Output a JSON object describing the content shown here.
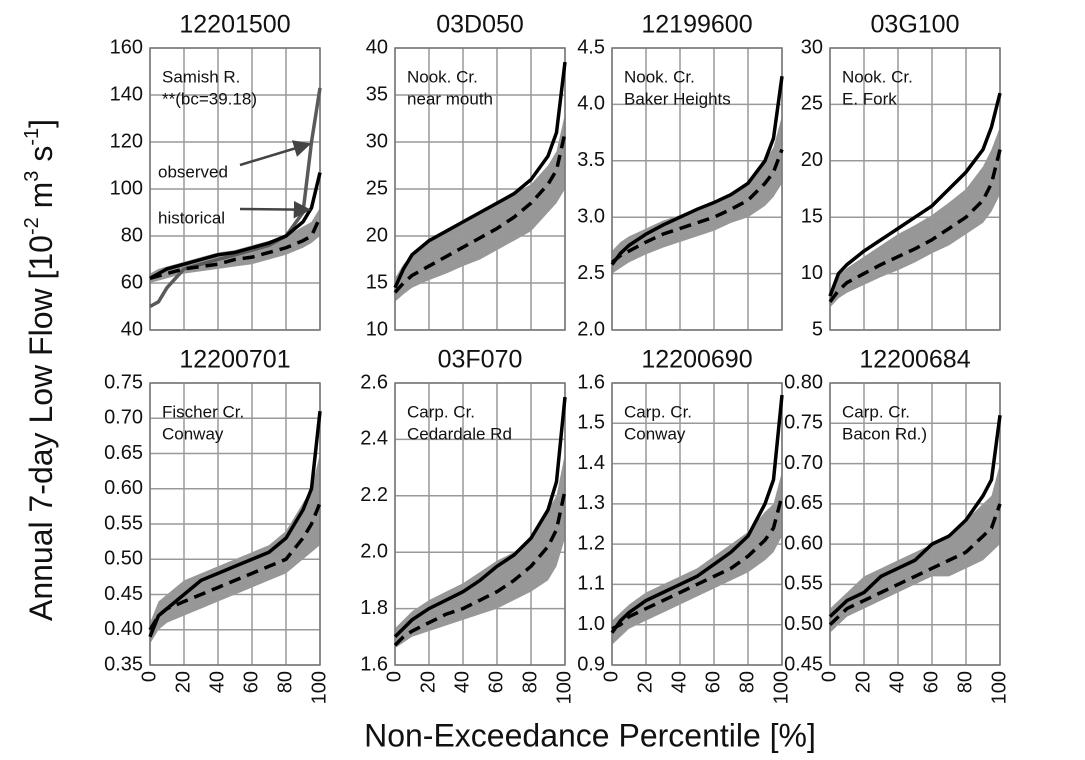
{
  "figure": {
    "xlabel": "Non-Exceedance Percentile [%]",
    "ylabel": [
      "Annual 7-day Low Flow [10",
      "-2",
      " m",
      "3",
      " s",
      "-1",
      "]"
    ]
  },
  "chart_data": [
    {
      "type": "line",
      "title": "12201500",
      "annotation": [
        "Samish R.",
        "**(bc=39.18)"
      ],
      "x": [
        0,
        5,
        10,
        20,
        30,
        40,
        50,
        60,
        70,
        80,
        90,
        95,
        100
      ],
      "xlim": [
        0,
        100
      ],
      "xticks": [
        0,
        20,
        40,
        60,
        80,
        100
      ],
      "ylim": [
        40,
        160
      ],
      "yticks": [
        40,
        60,
        80,
        100,
        120,
        140,
        160
      ],
      "grid": true,
      "band": {
        "color": "#8c8c8c",
        "lower": [
          60,
          61,
          62,
          64,
          65,
          66,
          67,
          68,
          70,
          72,
          75,
          77,
          80
        ],
        "upper": [
          64,
          66,
          67,
          69,
          71,
          73,
          74,
          76,
          78,
          80,
          84,
          86,
          92
        ]
      },
      "series": [
        {
          "name": "observed",
          "color": "#5a5a5a",
          "dash": false,
          "values": [
            50,
            52,
            58,
            66,
            68,
            70,
            72,
            74,
            76,
            80,
            90,
            120,
            143
          ]
        },
        {
          "name": "historical",
          "color": "#000000",
          "dash": false,
          "values": [
            62,
            64,
            66,
            68,
            70,
            72,
            73,
            75,
            77,
            80,
            86,
            92,
            107
          ]
        },
        {
          "color": "#000000",
          "dash": true,
          "values": [
            62,
            63,
            64,
            66,
            67,
            68,
            70,
            71,
            73,
            75,
            78,
            80,
            88
          ]
        }
      ]
    },
    {
      "type": "line",
      "title": "03D050",
      "annotation": [
        "Nook. Cr.",
        "near mouth"
      ],
      "x": [
        0,
        5,
        10,
        20,
        30,
        40,
        50,
        60,
        70,
        80,
        90,
        95,
        100
      ],
      "xlim": [
        0,
        100
      ],
      "xticks": [
        0,
        20,
        40,
        60,
        80,
        100
      ],
      "ylim": [
        10,
        40
      ],
      "yticks": [
        10,
        15,
        20,
        25,
        30,
        35,
        40
      ],
      "grid": true,
      "band": {
        "color": "#8c8c8c",
        "lower": [
          13,
          13.8,
          14.5,
          15.3,
          16,
          16.8,
          17.5,
          18.5,
          19.5,
          20.5,
          22.5,
          23.5,
          25
        ],
        "upper": [
          15.5,
          17,
          18,
          19.5,
          20.5,
          21.5,
          22.5,
          23.5,
          24.5,
          25.5,
          27.5,
          29,
          33
        ]
      },
      "series": [
        {
          "color": "#000000",
          "dash": false,
          "values": [
            14.5,
            16.5,
            18,
            19.5,
            20.5,
            21.5,
            22.5,
            23.5,
            24.5,
            26,
            28.5,
            31,
            38.5
          ]
        },
        {
          "color": "#000000",
          "dash": true,
          "values": [
            14,
            15,
            15.8,
            16.8,
            17.8,
            18.8,
            19.8,
            20.8,
            22,
            23.5,
            25.5,
            27,
            31
          ]
        }
      ]
    },
    {
      "type": "line",
      "title": "12199600",
      "annotation": [
        "Nook. Cr.",
        "Baker Heights"
      ],
      "x": [
        0,
        5,
        10,
        20,
        30,
        40,
        50,
        60,
        70,
        80,
        90,
        95,
        100
      ],
      "xlim": [
        0,
        100
      ],
      "xticks": [
        0,
        20,
        40,
        60,
        80,
        100
      ],
      "ylim": [
        2,
        4.5
      ],
      "yticks": [
        {
          "value": 2,
          "label": "2.0"
        },
        2.5,
        {
          "value": 3,
          "label": "3.0"
        },
        3.5,
        {
          "value": 4,
          "label": "4.0"
        },
        4.5
      ],
      "grid": true,
      "band": {
        "color": "#8c8c8c",
        "lower": [
          2.5,
          2.55,
          2.6,
          2.67,
          2.73,
          2.78,
          2.83,
          2.88,
          2.95,
          3.0,
          3.1,
          3.18,
          3.3
        ],
        "upper": [
          2.7,
          2.78,
          2.83,
          2.9,
          2.97,
          3.02,
          3.08,
          3.13,
          3.2,
          3.3,
          3.5,
          3.62,
          3.9
        ]
      },
      "series": [
        {
          "color": "#000000",
          "dash": false,
          "values": [
            2.58,
            2.68,
            2.75,
            2.85,
            2.93,
            3.0,
            3.07,
            3.13,
            3.2,
            3.3,
            3.5,
            3.7,
            4.25
          ]
        },
        {
          "color": "#000000",
          "dash": true,
          "values": [
            2.6,
            2.66,
            2.7,
            2.78,
            2.85,
            2.9,
            2.95,
            3.0,
            3.07,
            3.15,
            3.3,
            3.4,
            3.6
          ]
        }
      ]
    },
    {
      "type": "line",
      "title": "03G100",
      "annotation": [
        "Nook. Cr.",
        "E. Fork"
      ],
      "x": [
        0,
        5,
        10,
        20,
        30,
        40,
        50,
        60,
        70,
        80,
        90,
        95,
        100
      ],
      "xlim": [
        0,
        100
      ],
      "xticks": [
        0,
        20,
        40,
        60,
        80,
        100
      ],
      "ylim": [
        5,
        30
      ],
      "yticks": [
        5,
        10,
        15,
        20,
        25,
        30
      ],
      "grid": true,
      "band": {
        "color": "#8c8c8c",
        "lower": [
          7,
          7.8,
          8.3,
          9,
          9.7,
          10.3,
          11,
          11.8,
          12.5,
          13.5,
          14.5,
          15.5,
          17
        ],
        "upper": [
          8.5,
          9.8,
          10.5,
          11.5,
          12.5,
          13.5,
          14.3,
          15.2,
          16.3,
          17.5,
          19.5,
          21,
          23
        ]
      },
      "series": [
        {
          "color": "#000000",
          "dash": false,
          "values": [
            8,
            10,
            10.8,
            12,
            13,
            14,
            15,
            16,
            17.5,
            19,
            21,
            23,
            26
          ]
        },
        {
          "color": "#000000",
          "dash": true,
          "values": [
            7.5,
            8.5,
            9.2,
            10,
            10.8,
            11.5,
            12.2,
            13,
            14,
            15,
            16.5,
            18,
            21
          ]
        }
      ]
    },
    {
      "type": "line",
      "title": "12200701",
      "annotation": [
        "Fischer Cr.",
        "Conway"
      ],
      "x": [
        0,
        5,
        10,
        20,
        30,
        40,
        50,
        60,
        70,
        80,
        90,
        95,
        100
      ],
      "xlim": [
        0,
        100
      ],
      "xticks": [
        0,
        20,
        40,
        60,
        80,
        100
      ],
      "ylim": [
        0.35,
        0.75
      ],
      "yticks": [
        0.35,
        {
          "value": 0.4,
          "label": "0.40"
        },
        0.45,
        {
          "value": 0.5,
          "label": "0.50"
        },
        0.55,
        {
          "value": 0.6,
          "label": "0.60"
        },
        0.65,
        {
          "value": 0.7,
          "label": "0.70"
        },
        0.75
      ],
      "grid": true,
      "band": {
        "color": "#8c8c8c",
        "lower": [
          0.38,
          0.4,
          0.41,
          0.42,
          0.43,
          0.44,
          0.45,
          0.46,
          0.47,
          0.48,
          0.5,
          0.51,
          0.52
        ],
        "upper": [
          0.41,
          0.44,
          0.45,
          0.47,
          0.48,
          0.49,
          0.5,
          0.51,
          0.52,
          0.54,
          0.58,
          0.6,
          0.65
        ]
      },
      "series": [
        {
          "color": "#000000",
          "dash": false,
          "values": [
            0.39,
            0.42,
            0.43,
            0.45,
            0.47,
            0.48,
            0.49,
            0.5,
            0.51,
            0.53,
            0.57,
            0.6,
            0.71
          ]
        },
        {
          "color": "#000000",
          "dash": true,
          "values": [
            0.4,
            0.42,
            0.43,
            0.44,
            0.45,
            0.46,
            0.47,
            0.48,
            0.49,
            0.5,
            0.53,
            0.55,
            0.58
          ]
        }
      ]
    },
    {
      "type": "line",
      "title": "03F070",
      "annotation": [
        "Carp. Cr.",
        "Cedardale Rd"
      ],
      "x": [
        0,
        5,
        10,
        20,
        30,
        40,
        50,
        60,
        70,
        80,
        90,
        95,
        100
      ],
      "xlim": [
        0,
        100
      ],
      "xticks": [
        0,
        20,
        40,
        60,
        80,
        100
      ],
      "ylim": [
        1.6,
        2.6
      ],
      "yticks": [
        1.6,
        1.8,
        {
          "value": 2,
          "label": "2.0"
        },
        2.2,
        2.4,
        2.6
      ],
      "grid": true,
      "band": {
        "color": "#8c8c8c",
        "lower": [
          1.66,
          1.68,
          1.7,
          1.72,
          1.74,
          1.76,
          1.78,
          1.8,
          1.83,
          1.86,
          1.9,
          1.95,
          2.05
        ],
        "upper": [
          1.73,
          1.76,
          1.79,
          1.83,
          1.86,
          1.89,
          1.93,
          1.97,
          2.0,
          2.05,
          2.15,
          2.2,
          2.35
        ]
      },
      "series": [
        {
          "color": "#000000",
          "dash": false,
          "values": [
            1.7,
            1.73,
            1.76,
            1.8,
            1.83,
            1.86,
            1.9,
            1.95,
            1.99,
            2.05,
            2.15,
            2.25,
            2.55
          ]
        },
        {
          "color": "#000000",
          "dash": true,
          "values": [
            1.67,
            1.7,
            1.72,
            1.75,
            1.78,
            1.8,
            1.83,
            1.86,
            1.9,
            1.95,
            2.02,
            2.08,
            2.22
          ]
        }
      ]
    },
    {
      "type": "line",
      "title": "12200690",
      "annotation": [
        "Carp. Cr.",
        "Conway"
      ],
      "x": [
        0,
        5,
        10,
        20,
        30,
        40,
        50,
        60,
        70,
        80,
        90,
        95,
        100
      ],
      "xlim": [
        0,
        100
      ],
      "xticks": [
        0,
        20,
        40,
        60,
        80,
        100
      ],
      "ylim": [
        0.9,
        1.6
      ],
      "yticks": [
        0.9,
        {
          "value": 1,
          "label": "1.0"
        },
        1.1,
        1.2,
        1.3,
        1.4,
        1.5,
        1.6
      ],
      "grid": true,
      "band": {
        "color": "#8c8c8c",
        "lower": [
          0.95,
          0.97,
          0.99,
          1.01,
          1.03,
          1.05,
          1.07,
          1.09,
          1.11,
          1.13,
          1.16,
          1.18,
          1.22
        ],
        "upper": [
          1.01,
          1.03,
          1.05,
          1.08,
          1.1,
          1.12,
          1.14,
          1.17,
          1.2,
          1.23,
          1.28,
          1.3,
          1.38
        ]
      },
      "series": [
        {
          "color": "#000000",
          "dash": false,
          "values": [
            0.98,
            1.01,
            1.03,
            1.06,
            1.08,
            1.1,
            1.12,
            1.15,
            1.18,
            1.22,
            1.3,
            1.36,
            1.57
          ]
        },
        {
          "color": "#000000",
          "dash": true,
          "values": [
            0.99,
            1.0,
            1.02,
            1.04,
            1.06,
            1.08,
            1.1,
            1.12,
            1.14,
            1.17,
            1.21,
            1.24,
            1.32
          ]
        }
      ]
    },
    {
      "type": "line",
      "title": "12200684",
      "annotation": [
        "Carp. Cr.",
        "Bacon Rd.)"
      ],
      "x": [
        0,
        5,
        10,
        20,
        30,
        40,
        50,
        60,
        70,
        80,
        90,
        95,
        100
      ],
      "xlim": [
        0,
        100
      ],
      "xticks": [
        0,
        20,
        40,
        60,
        80,
        100
      ],
      "ylim": [
        0.45,
        0.8
      ],
      "yticks": [
        0.45,
        {
          "value": 0.5,
          "label": "0.50"
        },
        0.55,
        {
          "value": 0.6,
          "label": "0.60"
        },
        0.65,
        {
          "value": 0.7,
          "label": "0.70"
        },
        0.75,
        {
          "value": 0.8,
          "label": "0.80"
        }
      ],
      "grid": true,
      "band": {
        "color": "#8c8c8c",
        "lower": [
          0.49,
          0.5,
          0.51,
          0.52,
          0.53,
          0.54,
          0.55,
          0.56,
          0.56,
          0.57,
          0.58,
          0.59,
          0.6
        ],
        "upper": [
          0.52,
          0.53,
          0.54,
          0.56,
          0.57,
          0.58,
          0.59,
          0.6,
          0.61,
          0.63,
          0.65,
          0.66,
          0.7
        ]
      },
      "series": [
        {
          "color": "#000000",
          "dash": false,
          "values": [
            0.51,
            0.52,
            0.53,
            0.54,
            0.56,
            0.57,
            0.58,
            0.6,
            0.61,
            0.63,
            0.66,
            0.68,
            0.76
          ]
        },
        {
          "color": "#000000",
          "dash": true,
          "values": [
            0.5,
            0.51,
            0.52,
            0.53,
            0.54,
            0.55,
            0.56,
            0.57,
            0.58,
            0.59,
            0.61,
            0.62,
            0.65
          ]
        }
      ]
    }
  ]
}
